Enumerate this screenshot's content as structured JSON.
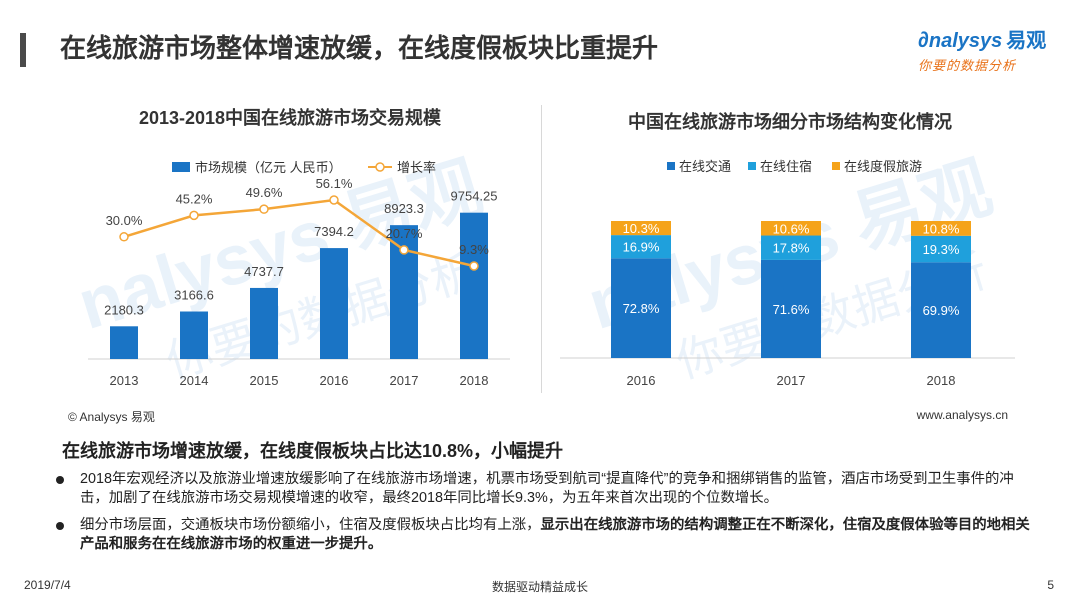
{
  "page": {
    "title": "在线旅游市场整体增速放缓，在线度假板块比重提升",
    "logo_main": "nalysys",
    "logo_cn": "易观",
    "logo_sub": "你要的数据分析",
    "watermark_main": "nalysys 易观",
    "watermark_sub": "你要的数据分析",
    "source_left": "© Analysys 易观",
    "source_right": "www.analysys.cn",
    "subhead": "在线旅游市场增速放缓，在线度假板块占比达10.8%，小幅提升",
    "bullets": [
      {
        "text": "2018年宏观经济以及旅游业增速放缓影响了在线旅游市场增速，机票市场受到航司“提直降代”的竞争和捆绑销售的监管，酒店市场受到卫生事件的冲击，加剧了在线旅游市场交易规模增速的收窄，最终2018年同比增长9.3%，为五年来首次出现的个位数增长。",
        "bold": ""
      },
      {
        "text": "细分市场层面，交通板块市场份额缩小，住宿及度假板块占比均有上涨，",
        "bold": "显示出在线旅游市场的结构调整正在不断深化，住宿及度假体验等目的地相关产品和服务在在线旅游市场的权重进一步提升。"
      }
    ],
    "footer_date": "2019/7/4",
    "footer_center": "数据驱动精益成长",
    "footer_page": "5"
  },
  "chart_data": [
    {
      "type": "bar",
      "title": "2013-2018中国在线旅游市场交易规模",
      "categories": [
        "2013",
        "2014",
        "2015",
        "2016",
        "2017",
        "2018"
      ],
      "series": [
        {
          "name": "市场规模（亿元 人民币）",
          "kind": "bar",
          "color": "#1a74c5",
          "values": [
            2180.3,
            3166.6,
            4737.7,
            7394.2,
            8923.3,
            9754.25
          ],
          "labels": [
            "2180.3",
            "3166.6",
            "4737.7",
            "7394.2",
            "8923.3",
            "9754.25"
          ]
        },
        {
          "name": "增长率",
          "kind": "line",
          "color": "#f4a638",
          "values": [
            30.0,
            45.2,
            49.6,
            56.1,
            20.7,
            9.3
          ],
          "labels": [
            "30.0%",
            "45.2%",
            "49.6%",
            "56.1%",
            "20.7%",
            "9.3%"
          ]
        }
      ],
      "legend_position": "top-center",
      "grid": false
    },
    {
      "type": "bar",
      "stacked": true,
      "title": "中国在线旅游市场细分市场结构变化情况",
      "categories": [
        "2016",
        "2017",
        "2018"
      ],
      "series": [
        {
          "name": "在线交通",
          "color": "#1a74c5",
          "values": [
            72.8,
            71.6,
            69.9
          ],
          "labels": [
            "72.8%",
            "71.6%",
            "69.9%"
          ]
        },
        {
          "name": "在线住宿",
          "color": "#1fa0dc",
          "values": [
            16.9,
            17.8,
            19.3
          ],
          "labels": [
            "16.9%",
            "17.8%",
            "19.3%"
          ]
        },
        {
          "name": "在线度假旅游",
          "color": "#f5a31a",
          "values": [
            10.3,
            10.6,
            10.8
          ],
          "labels": [
            "10.3%",
            "10.6%",
            "10.8%"
          ]
        }
      ],
      "legend_position": "top-center",
      "grid": false
    }
  ]
}
